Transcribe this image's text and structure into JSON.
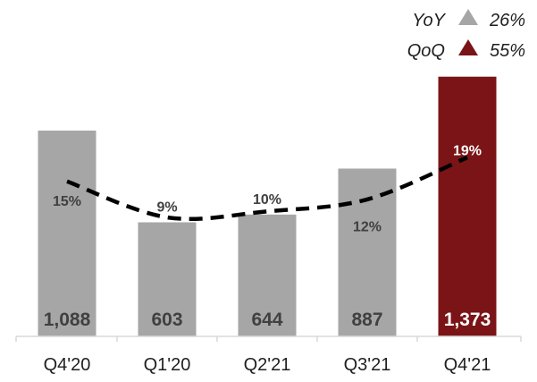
{
  "chart_data": {
    "type": "bar",
    "categories": [
      "Q4'20",
      "Q1'20",
      "Q2'21",
      "Q3'21",
      "Q4'21"
    ],
    "values": [
      1088,
      603,
      644,
      887,
      1373
    ],
    "value_labels": [
      "1,088",
      "603",
      "644",
      "887",
      "1,373"
    ],
    "percent_labels": [
      "15%",
      "9%",
      "10%",
      "12%",
      "19%"
    ],
    "percent_series": [
      15,
      9,
      10,
      12,
      19
    ],
    "ylim": [
      0,
      1400
    ],
    "legend_placement": "top-right",
    "colors": {
      "default_bar": "#a6a6a6",
      "highlight_bar": "#7a1416",
      "default_label": "#404040",
      "highlight_label": "#ffffff",
      "trend_line": "#000000",
      "yoy_marker": "#a6a6a6",
      "qoq_marker": "#7a1416"
    },
    "highlight_index": 4,
    "trend_style": "dashed",
    "growth": [
      {
        "label": "YoY",
        "value": "26%",
        "icon": "triangle-up-icon",
        "color": "#a6a6a6"
      },
      {
        "label": "QoQ",
        "value": "55%",
        "icon": "triangle-up-icon",
        "color": "#7a1416"
      }
    ]
  }
}
